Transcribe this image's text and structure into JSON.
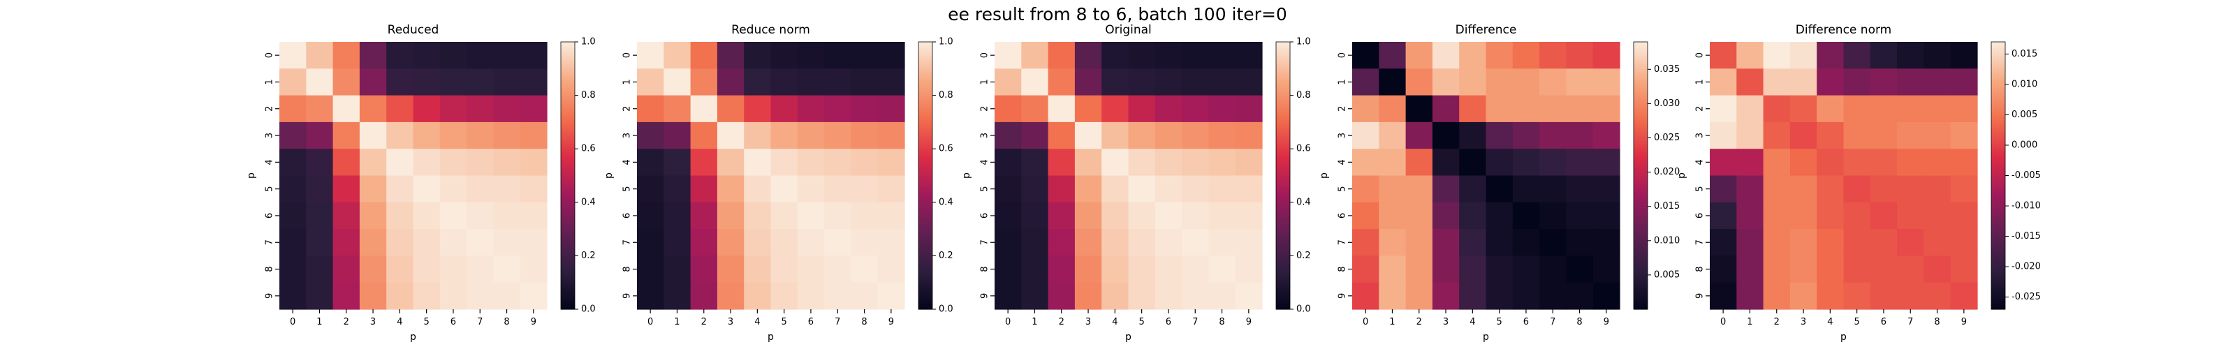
{
  "suptitle": "ee result from 8 to 6, batch 100 iter=0",
  "colors": {
    "rocket_stops": [
      "#03051a",
      "#2d1e3e",
      "#611f53",
      "#a11a5b",
      "#dd2c45",
      "#f26f4d",
      "#f6aa82",
      "#faebdd"
    ]
  },
  "chart_data": [
    {
      "type": "heatmap",
      "title": "Reduced",
      "xlabel": "p",
      "ylabel": "p",
      "xticks": [
        "0",
        "1",
        "2",
        "3",
        "4",
        "5",
        "6",
        "7",
        "8",
        "9"
      ],
      "yticks": [
        "0",
        "1",
        "2",
        "3",
        "4",
        "5",
        "6",
        "7",
        "8",
        "9"
      ],
      "vmin": 0,
      "vmax": 1,
      "cbar_ticks": [
        "0.0",
        "0.2",
        "0.4",
        "0.6",
        "0.8",
        "1.0"
      ],
      "values": [
        [
          1.0,
          0.91,
          0.75,
          0.3,
          0.12,
          0.11,
          0.1,
          0.09,
          0.09,
          0.09
        ],
        [
          0.91,
          1.0,
          0.78,
          0.35,
          0.16,
          0.15,
          0.14,
          0.14,
          0.13,
          0.13
        ],
        [
          0.75,
          0.78,
          1.0,
          0.75,
          0.65,
          0.55,
          0.5,
          0.48,
          0.46,
          0.45
        ],
        [
          0.3,
          0.35,
          0.75,
          1.0,
          0.92,
          0.87,
          0.84,
          0.82,
          0.8,
          0.79
        ],
        [
          0.12,
          0.16,
          0.65,
          0.92,
          1.0,
          0.97,
          0.95,
          0.94,
          0.93,
          0.92
        ],
        [
          0.11,
          0.15,
          0.55,
          0.87,
          0.97,
          1.0,
          0.98,
          0.97,
          0.97,
          0.96
        ],
        [
          0.1,
          0.14,
          0.5,
          0.84,
          0.95,
          0.98,
          1.0,
          0.99,
          0.98,
          0.98
        ],
        [
          0.09,
          0.14,
          0.48,
          0.82,
          0.94,
          0.97,
          0.99,
          1.0,
          0.99,
          0.99
        ],
        [
          0.09,
          0.13,
          0.46,
          0.8,
          0.93,
          0.97,
          0.98,
          0.99,
          1.0,
          0.99
        ],
        [
          0.09,
          0.13,
          0.45,
          0.79,
          0.92,
          0.96,
          0.98,
          0.99,
          0.99,
          1.0
        ]
      ]
    },
    {
      "type": "heatmap",
      "title": "Reduce norm",
      "xlabel": "p",
      "ylabel": "p",
      "xticks": [
        "0",
        "1",
        "2",
        "3",
        "4",
        "5",
        "6",
        "7",
        "8",
        "9"
      ],
      "yticks": [
        "0",
        "1",
        "2",
        "3",
        "4",
        "5",
        "6",
        "7",
        "8",
        "9"
      ],
      "vmin": 0,
      "vmax": 1,
      "cbar_ticks": [
        "0.0",
        "0.2",
        "0.4",
        "0.6",
        "0.8",
        "1.0"
      ],
      "values": [
        [
          1.0,
          0.92,
          0.72,
          0.26,
          0.1,
          0.08,
          0.07,
          0.06,
          0.06,
          0.06
        ],
        [
          0.92,
          1.0,
          0.76,
          0.31,
          0.14,
          0.12,
          0.11,
          0.11,
          0.1,
          0.1
        ],
        [
          0.72,
          0.76,
          1.0,
          0.73,
          0.61,
          0.51,
          0.46,
          0.44,
          0.42,
          0.41
        ],
        [
          0.26,
          0.31,
          0.73,
          1.0,
          0.91,
          0.86,
          0.83,
          0.81,
          0.79,
          0.78
        ],
        [
          0.1,
          0.14,
          0.61,
          0.91,
          1.0,
          0.97,
          0.95,
          0.94,
          0.93,
          0.92
        ],
        [
          0.08,
          0.12,
          0.51,
          0.86,
          0.97,
          1.0,
          0.98,
          0.97,
          0.97,
          0.96
        ],
        [
          0.07,
          0.11,
          0.46,
          0.83,
          0.95,
          0.98,
          1.0,
          0.99,
          0.98,
          0.98
        ],
        [
          0.06,
          0.11,
          0.44,
          0.81,
          0.94,
          0.97,
          0.99,
          1.0,
          0.99,
          0.99
        ],
        [
          0.06,
          0.1,
          0.42,
          0.79,
          0.93,
          0.97,
          0.98,
          0.99,
          1.0,
          0.99
        ],
        [
          0.06,
          0.1,
          0.41,
          0.78,
          0.92,
          0.96,
          0.98,
          0.99,
          0.99,
          1.0
        ]
      ]
    },
    {
      "type": "heatmap",
      "title": "Original",
      "xlabel": "p",
      "ylabel": "p",
      "xticks": [
        "0",
        "1",
        "2",
        "3",
        "4",
        "5",
        "6",
        "7",
        "8",
        "9"
      ],
      "yticks": [
        "0",
        "1",
        "2",
        "3",
        "4",
        "5",
        "6",
        "7",
        "8",
        "9"
      ],
      "vmin": 0,
      "vmax": 1,
      "cbar_ticks": [
        "0.0",
        "0.2",
        "0.4",
        "0.6",
        "0.8",
        "1.0"
      ],
      "values": [
        [
          1.0,
          0.9,
          0.71,
          0.26,
          0.09,
          0.08,
          0.07,
          0.06,
          0.06,
          0.06
        ],
        [
          0.9,
          1.0,
          0.74,
          0.31,
          0.13,
          0.12,
          0.11,
          0.1,
          0.1,
          0.1
        ],
        [
          0.71,
          0.74,
          1.0,
          0.72,
          0.61,
          0.51,
          0.46,
          0.44,
          0.42,
          0.41
        ],
        [
          0.26,
          0.31,
          0.72,
          1.0,
          0.9,
          0.85,
          0.82,
          0.8,
          0.78,
          0.77
        ],
        [
          0.09,
          0.13,
          0.61,
          0.9,
          1.0,
          0.96,
          0.94,
          0.93,
          0.92,
          0.91
        ],
        [
          0.08,
          0.12,
          0.51,
          0.85,
          0.96,
          1.0,
          0.98,
          0.97,
          0.96,
          0.96
        ],
        [
          0.07,
          0.11,
          0.46,
          0.82,
          0.94,
          0.98,
          1.0,
          0.99,
          0.98,
          0.98
        ],
        [
          0.06,
          0.1,
          0.44,
          0.8,
          0.93,
          0.97,
          0.99,
          1.0,
          0.99,
          0.99
        ],
        [
          0.06,
          0.1,
          0.42,
          0.78,
          0.92,
          0.96,
          0.98,
          0.99,
          1.0,
          0.99
        ],
        [
          0.06,
          0.1,
          0.41,
          0.77,
          0.91,
          0.96,
          0.98,
          0.99,
          0.99,
          1.0
        ]
      ]
    },
    {
      "type": "heatmap",
      "title": "Difference",
      "xlabel": "p",
      "ylabel": "p",
      "xticks": [
        "0",
        "1",
        "2",
        "3",
        "4",
        "5",
        "6",
        "7",
        "8",
        "9"
      ],
      "yticks": [
        "0",
        "1",
        "2",
        "3",
        "4",
        "5",
        "6",
        "7",
        "8",
        "9"
      ],
      "vmin": 0,
      "vmax": 0.039,
      "cbar_ticks": [
        "0.005",
        "0.010",
        "0.015",
        "0.020",
        "0.025",
        "0.030",
        "0.035"
      ],
      "values": [
        [
          0.0,
          0.01,
          0.032,
          0.038,
          0.034,
          0.03,
          0.028,
          0.026,
          0.025,
          0.024
        ],
        [
          0.01,
          0.0,
          0.03,
          0.035,
          0.034,
          0.032,
          0.032,
          0.033,
          0.034,
          0.034
        ],
        [
          0.032,
          0.03,
          0.0,
          0.014,
          0.027,
          0.032,
          0.032,
          0.032,
          0.032,
          0.032
        ],
        [
          0.038,
          0.035,
          0.014,
          0.0,
          0.003,
          0.01,
          0.012,
          0.014,
          0.014,
          0.015
        ],
        [
          0.034,
          0.034,
          0.027,
          0.003,
          0.0,
          0.004,
          0.005,
          0.006,
          0.007,
          0.007
        ],
        [
          0.03,
          0.032,
          0.032,
          0.01,
          0.004,
          0.0,
          0.002,
          0.002,
          0.003,
          0.003
        ],
        [
          0.028,
          0.032,
          0.032,
          0.012,
          0.005,
          0.002,
          0.0,
          0.001,
          0.002,
          0.002
        ],
        [
          0.026,
          0.033,
          0.032,
          0.014,
          0.006,
          0.002,
          0.001,
          0.0,
          0.001,
          0.001
        ],
        [
          0.025,
          0.034,
          0.032,
          0.014,
          0.007,
          0.003,
          0.002,
          0.001,
          0.0,
          0.001
        ],
        [
          0.024,
          0.034,
          0.032,
          0.015,
          0.007,
          0.003,
          0.002,
          0.001,
          0.001,
          0.0
        ]
      ]
    },
    {
      "type": "heatmap",
      "title": "Difference norm",
      "xlabel": "p",
      "ylabel": "p",
      "xticks": [
        "0",
        "1",
        "2",
        "3",
        "4",
        "5",
        "6",
        "7",
        "8",
        "9"
      ],
      "yticks": [
        "0",
        "1",
        "2",
        "3",
        "4",
        "5",
        "6",
        "7",
        "8",
        "9"
      ],
      "vmin": -0.027,
      "vmax": 0.017,
      "cbar_ticks": [
        "-0.025",
        "-0.020",
        "-0.015",
        "-0.010",
        "-0.005",
        "0.000",
        "0.005",
        "0.010",
        "0.015"
      ],
      "values": [
        [
          0.002,
          0.012,
          0.017,
          0.016,
          -0.012,
          -0.018,
          -0.022,
          -0.024,
          -0.025,
          -0.026
        ],
        [
          0.012,
          0.002,
          0.014,
          0.014,
          -0.01,
          -0.012,
          -0.011,
          -0.012,
          -0.012,
          -0.012
        ],
        [
          0.017,
          0.014,
          0.002,
          0.003,
          0.008,
          0.006,
          0.006,
          0.006,
          0.006,
          0.006
        ],
        [
          0.016,
          0.014,
          0.003,
          0.001,
          0.003,
          0.006,
          0.006,
          0.007,
          0.007,
          0.008
        ],
        [
          -0.006,
          -0.006,
          0.006,
          0.004,
          0.002,
          0.003,
          0.003,
          0.004,
          0.004,
          0.004
        ],
        [
          -0.016,
          -0.011,
          0.006,
          0.006,
          0.003,
          0.001,
          0.002,
          0.002,
          0.002,
          0.003
        ],
        [
          -0.021,
          -0.011,
          0.006,
          0.006,
          0.003,
          0.002,
          0.001,
          0.002,
          0.002,
          0.002
        ],
        [
          -0.024,
          -0.012,
          0.006,
          0.007,
          0.004,
          0.002,
          0.002,
          0.001,
          0.002,
          0.002
        ],
        [
          -0.025,
          -0.012,
          0.006,
          0.007,
          0.004,
          0.002,
          0.002,
          0.002,
          0.001,
          0.002
        ],
        [
          -0.026,
          -0.012,
          0.006,
          0.008,
          0.004,
          0.003,
          0.002,
          0.002,
          0.002,
          0.001
        ]
      ]
    }
  ]
}
